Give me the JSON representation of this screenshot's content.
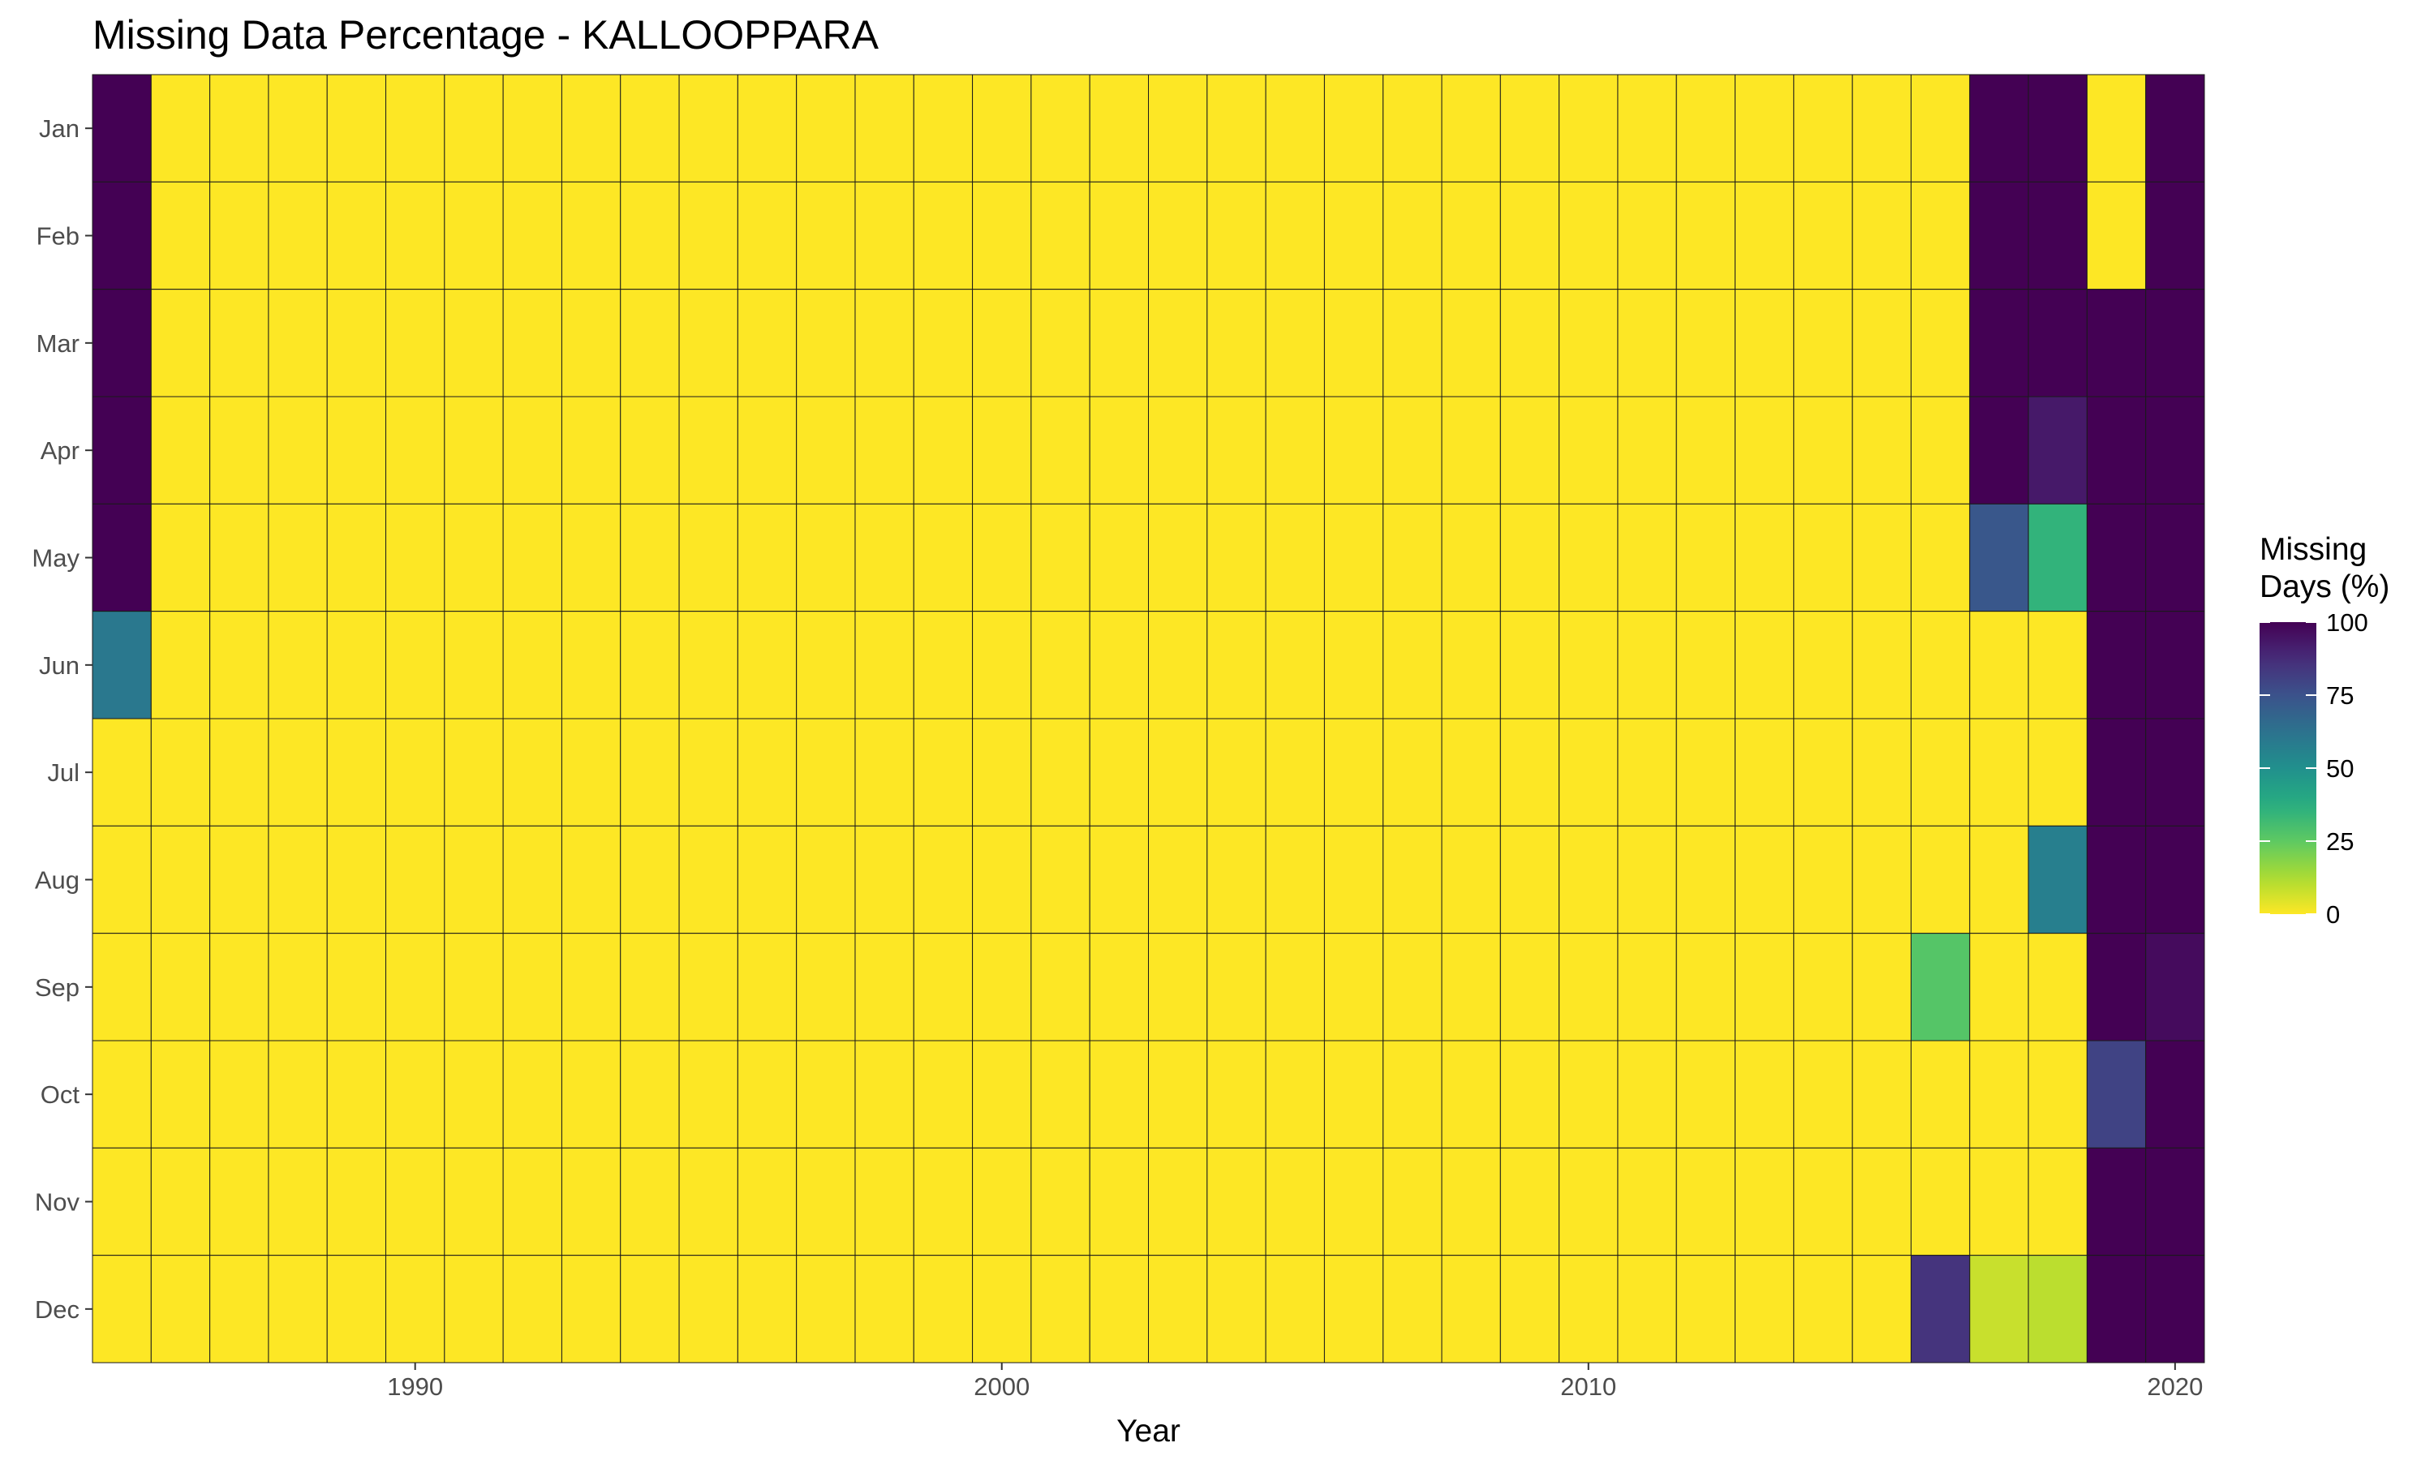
{
  "chart_data": {
    "type": "heatmap",
    "title": "Missing Data Percentage - KALLOOPPARA",
    "xlabel": "Year",
    "ylabel": "",
    "x": [
      1985,
      1986,
      1987,
      1988,
      1989,
      1990,
      1991,
      1992,
      1993,
      1994,
      1995,
      1996,
      1997,
      1998,
      1999,
      2000,
      2001,
      2002,
      2003,
      2004,
      2005,
      2006,
      2007,
      2008,
      2009,
      2010,
      2011,
      2012,
      2013,
      2014,
      2015,
      2016,
      2017,
      2018,
      2019,
      2020
    ],
    "x_ticks": [
      1990,
      2000,
      2010,
      2020
    ],
    "y": [
      "Jan",
      "Feb",
      "Mar",
      "Apr",
      "May",
      "Jun",
      "Jul",
      "Aug",
      "Sep",
      "Oct",
      "Nov",
      "Dec"
    ],
    "xlim": [
      1984.5,
      2020.5
    ],
    "color_scale": {
      "name": "viridis",
      "direction": "reversed",
      "range": [
        0,
        100
      ],
      "ticks": [
        0,
        25,
        50,
        75,
        100
      ],
      "low_color": "#fde725",
      "high_color": "#440154"
    },
    "legend": {
      "title_lines": [
        "Missing",
        "Days (%)"
      ],
      "placement": "right"
    },
    "grid": false,
    "default_value": 0,
    "values": [
      {
        "year": 1985,
        "month": "Jan",
        "value": 100
      },
      {
        "year": 1985,
        "month": "Feb",
        "value": 100
      },
      {
        "year": 1985,
        "month": "Mar",
        "value": 100
      },
      {
        "year": 1985,
        "month": "Apr",
        "value": 100
      },
      {
        "year": 1985,
        "month": "May",
        "value": 100
      },
      {
        "year": 1985,
        "month": "Jun",
        "value": 60
      },
      {
        "year": 2016,
        "month": "Sep",
        "value": 27
      },
      {
        "year": 2016,
        "month": "Dec",
        "value": 85
      },
      {
        "year": 2017,
        "month": "Jan",
        "value": 100
      },
      {
        "year": 2017,
        "month": "Feb",
        "value": 100
      },
      {
        "year": 2017,
        "month": "Mar",
        "value": 100
      },
      {
        "year": 2017,
        "month": "Apr",
        "value": 100
      },
      {
        "year": 2017,
        "month": "May",
        "value": 73
      },
      {
        "year": 2017,
        "month": "Dec",
        "value": 8
      },
      {
        "year": 2018,
        "month": "Jan",
        "value": 100
      },
      {
        "year": 2018,
        "month": "Feb",
        "value": 100
      },
      {
        "year": 2018,
        "month": "Mar",
        "value": 100
      },
      {
        "year": 2018,
        "month": "Apr",
        "value": 93
      },
      {
        "year": 2018,
        "month": "May",
        "value": 35
      },
      {
        "year": 2018,
        "month": "Aug",
        "value": 57
      },
      {
        "year": 2018,
        "month": "Dec",
        "value": 10
      },
      {
        "year": 2019,
        "month": "Mar",
        "value": 100
      },
      {
        "year": 2019,
        "month": "Apr",
        "value": 100
      },
      {
        "year": 2019,
        "month": "May",
        "value": 100
      },
      {
        "year": 2019,
        "month": "Jun",
        "value": 100
      },
      {
        "year": 2019,
        "month": "Jul",
        "value": 100
      },
      {
        "year": 2019,
        "month": "Aug",
        "value": 100
      },
      {
        "year": 2019,
        "month": "Sep",
        "value": 100
      },
      {
        "year": 2019,
        "month": "Oct",
        "value": 80
      },
      {
        "year": 2019,
        "month": "Nov",
        "value": 100
      },
      {
        "year": 2019,
        "month": "Dec",
        "value": 100
      },
      {
        "year": 2020,
        "month": "Jan",
        "value": 100
      },
      {
        "year": 2020,
        "month": "Feb",
        "value": 100
      },
      {
        "year": 2020,
        "month": "Mar",
        "value": 100
      },
      {
        "year": 2020,
        "month": "Apr",
        "value": 100
      },
      {
        "year": 2020,
        "month": "May",
        "value": 100
      },
      {
        "year": 2020,
        "month": "Jun",
        "value": 100
      },
      {
        "year": 2020,
        "month": "Jul",
        "value": 100
      },
      {
        "year": 2020,
        "month": "Aug",
        "value": 100
      },
      {
        "year": 2020,
        "month": "Sep",
        "value": 97
      },
      {
        "year": 2020,
        "month": "Oct",
        "value": 100
      },
      {
        "year": 2020,
        "month": "Nov",
        "value": 100
      },
      {
        "year": 2020,
        "month": "Dec",
        "value": 100
      }
    ]
  }
}
